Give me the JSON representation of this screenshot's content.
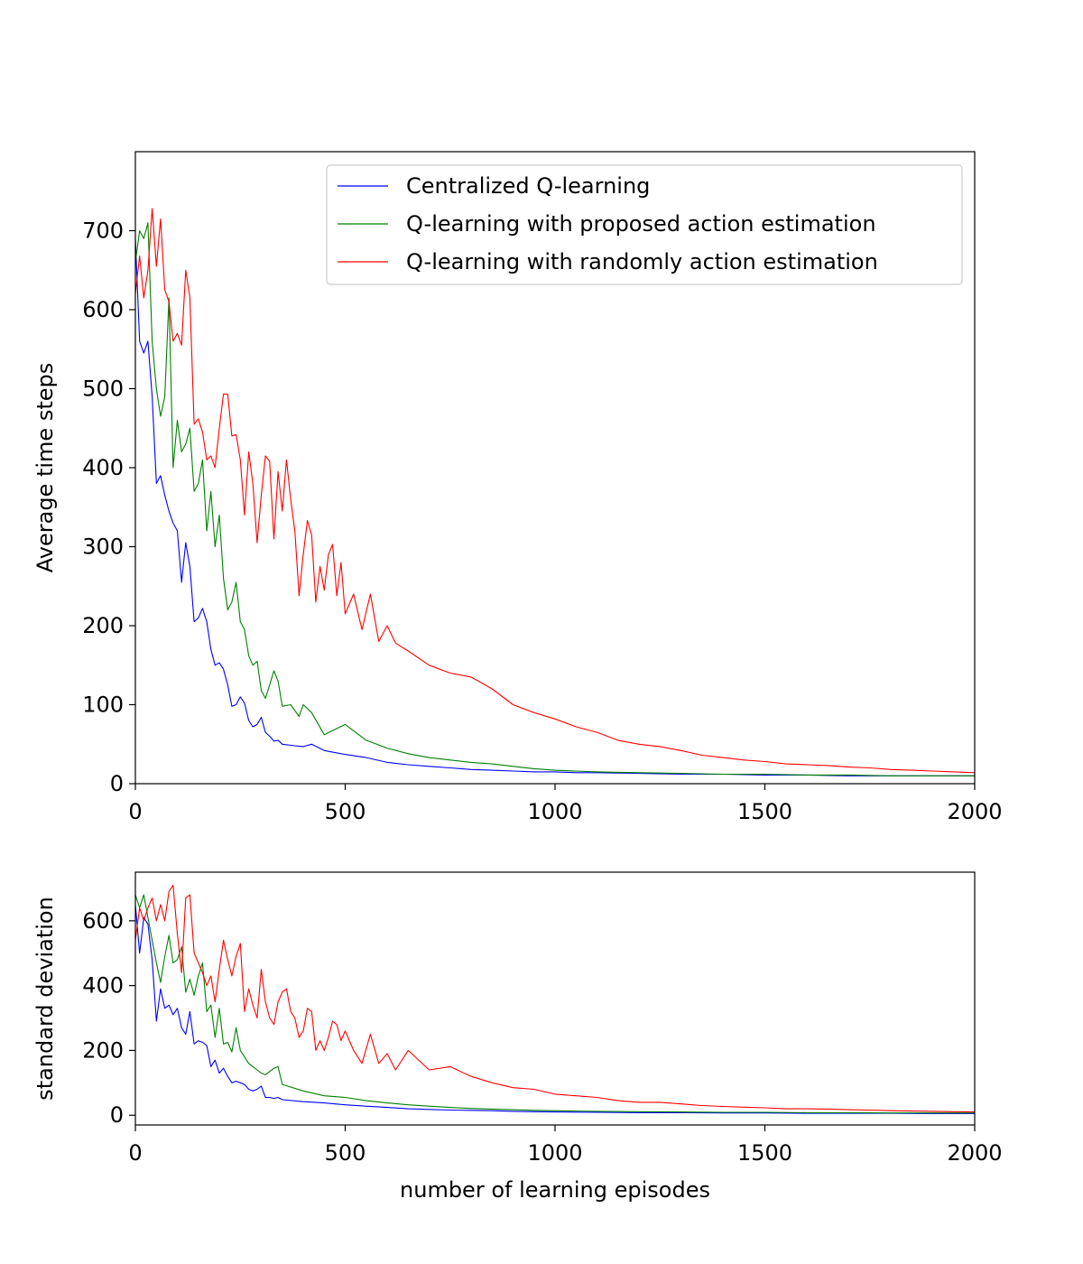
{
  "chart_data": [
    {
      "type": "line",
      "title": "",
      "xlabel": "",
      "ylabel": "Average time steps",
      "xlim": [
        0,
        2000
      ],
      "ylim": [
        0,
        800
      ],
      "xticks": [
        0,
        500,
        1000,
        1500,
        2000
      ],
      "yticks": [
        0,
        100,
        200,
        300,
        400,
        500,
        600,
        700
      ],
      "grid": false,
      "legend_position": "top-right",
      "series": [
        {
          "name": "Centralized Q-learning",
          "color": "#0000ff",
          "x": [
            0,
            10,
            20,
            30,
            40,
            50,
            60,
            70,
            80,
            90,
            100,
            110,
            120,
            130,
            140,
            150,
            160,
            170,
            180,
            190,
            200,
            210,
            220,
            230,
            240,
            250,
            260,
            270,
            280,
            290,
            300,
            310,
            320,
            330,
            340,
            350,
            380,
            400,
            420,
            450,
            500,
            550,
            600,
            650,
            700,
            750,
            800,
            850,
            900,
            950,
            1000,
            1050,
            1100,
            1200,
            1300,
            1400,
            1500,
            1600,
            1700,
            1800,
            1900,
            2000
          ],
          "values": [
            690,
            560,
            545,
            560,
            490,
            380,
            390,
            365,
            345,
            330,
            320,
            255,
            305,
            275,
            205,
            210,
            222,
            205,
            170,
            150,
            153,
            145,
            125,
            98,
            100,
            110,
            102,
            80,
            72,
            75,
            84,
            65,
            60,
            54,
            55,
            50,
            48,
            47,
            50,
            42,
            37,
            33,
            27,
            24,
            22,
            20,
            18,
            17,
            16,
            15,
            15,
            14,
            14,
            13,
            12,
            12,
            11,
            11,
            10,
            10,
            10,
            10
          ]
        },
        {
          "name": "Q-learning with proposed action estimation",
          "color": "#008000",
          "x": [
            0,
            10,
            20,
            30,
            40,
            50,
            60,
            70,
            80,
            90,
            100,
            110,
            120,
            130,
            140,
            150,
            160,
            170,
            180,
            190,
            200,
            210,
            220,
            230,
            240,
            250,
            260,
            270,
            280,
            290,
            300,
            310,
            320,
            330,
            340,
            350,
            370,
            390,
            400,
            420,
            450,
            500,
            550,
            600,
            650,
            700,
            750,
            800,
            850,
            900,
            950,
            1000,
            1050,
            1100,
            1200,
            1300,
            1400,
            1500,
            1600,
            1700,
            1800,
            1900,
            2000
          ],
          "values": [
            660,
            700,
            690,
            710,
            560,
            500,
            465,
            490,
            615,
            400,
            460,
            420,
            430,
            450,
            370,
            380,
            410,
            320,
            370,
            300,
            340,
            260,
            220,
            230,
            255,
            205,
            195,
            162,
            150,
            155,
            118,
            108,
            125,
            143,
            130,
            98,
            100,
            85,
            100,
            90,
            62,
            75,
            55,
            45,
            38,
            33,
            30,
            27,
            25,
            22,
            19,
            17,
            16,
            15,
            14,
            13,
            12,
            12,
            11,
            11,
            10,
            10,
            10
          ]
        },
        {
          "name": "Q-learning with randomly action estimation",
          "color": "#ff0000",
          "x": [
            0,
            10,
            20,
            30,
            40,
            50,
            60,
            70,
            80,
            90,
            100,
            110,
            120,
            130,
            140,
            150,
            160,
            170,
            180,
            190,
            200,
            210,
            220,
            230,
            240,
            250,
            260,
            270,
            280,
            290,
            300,
            310,
            320,
            330,
            340,
            350,
            360,
            370,
            380,
            390,
            400,
            410,
            420,
            430,
            440,
            450,
            460,
            470,
            480,
            490,
            500,
            520,
            540,
            560,
            580,
            600,
            620,
            650,
            700,
            750,
            800,
            850,
            900,
            950,
            1000,
            1050,
            1100,
            1150,
            1200,
            1250,
            1300,
            1350,
            1400,
            1450,
            1500,
            1550,
            1600,
            1650,
            1700,
            1750,
            1800,
            1850,
            1900,
            1950,
            2000
          ],
          "values": [
            620,
            668,
            615,
            650,
            728,
            655,
            715,
            625,
            610,
            560,
            570,
            555,
            650,
            615,
            455,
            462,
            445,
            410,
            415,
            400,
            450,
            493,
            493,
            440,
            442,
            410,
            340,
            420,
            380,
            305,
            365,
            415,
            408,
            310,
            395,
            345,
            410,
            360,
            320,
            238,
            290,
            333,
            315,
            230,
            275,
            245,
            290,
            303,
            238,
            280,
            215,
            240,
            195,
            240,
            180,
            200,
            178,
            168,
            150,
            140,
            135,
            120,
            100,
            90,
            82,
            72,
            65,
            55,
            50,
            47,
            42,
            36,
            33,
            30,
            28,
            25,
            24,
            23,
            21,
            20,
            18,
            17,
            16,
            15,
            14
          ]
        }
      ]
    },
    {
      "type": "line",
      "title": "",
      "xlabel": "number of learning episodes",
      "ylabel": "standard deviation",
      "xlim": [
        0,
        2000
      ],
      "ylim": [
        -30,
        750
      ],
      "xticks": [
        0,
        500,
        1000,
        1500,
        2000
      ],
      "yticks": [
        0,
        200,
        400,
        600
      ],
      "grid": false,
      "legend_position": "none",
      "series": [
        {
          "name": "Centralized Q-learning",
          "color": "#0000ff",
          "x": [
            0,
            10,
            20,
            30,
            40,
            50,
            60,
            70,
            80,
            90,
            100,
            110,
            120,
            130,
            140,
            150,
            160,
            170,
            180,
            190,
            200,
            210,
            220,
            230,
            240,
            250,
            260,
            270,
            280,
            290,
            300,
            310,
            320,
            330,
            340,
            350,
            400,
            450,
            500,
            550,
            600,
            650,
            700,
            750,
            800,
            850,
            900,
            950,
            1000,
            1100,
            1200,
            1300,
            1400,
            1500,
            1600,
            1700,
            1800,
            1900,
            2000
          ],
          "values": [
            650,
            500,
            610,
            590,
            480,
            290,
            390,
            330,
            340,
            310,
            330,
            270,
            250,
            320,
            220,
            230,
            225,
            215,
            150,
            170,
            130,
            145,
            120,
            100,
            105,
            100,
            95,
            80,
            75,
            80,
            90,
            55,
            55,
            52,
            55,
            48,
            42,
            38,
            32,
            28,
            24,
            20,
            18,
            16,
            15,
            14,
            12,
            11,
            10,
            9,
            8,
            8,
            7,
            7,
            6,
            6,
            6,
            5,
            5
          ]
        },
        {
          "name": "Q-learning with proposed action estimation",
          "color": "#008000",
          "x": [
            0,
            10,
            20,
            30,
            40,
            50,
            60,
            70,
            80,
            90,
            100,
            110,
            120,
            130,
            140,
            150,
            160,
            170,
            180,
            190,
            200,
            210,
            220,
            230,
            240,
            250,
            260,
            270,
            280,
            290,
            300,
            310,
            320,
            330,
            340,
            350,
            400,
            450,
            500,
            550,
            600,
            650,
            700,
            750,
            800,
            850,
            900,
            950,
            1000,
            1100,
            1200,
            1300,
            1400,
            1500,
            1600,
            1700,
            1800,
            1900,
            2000
          ],
          "values": [
            680,
            640,
            680,
            610,
            540,
            470,
            410,
            490,
            555,
            470,
            480,
            520,
            380,
            420,
            370,
            430,
            470,
            320,
            340,
            240,
            330,
            220,
            225,
            195,
            270,
            200,
            180,
            160,
            150,
            140,
            130,
            125,
            135,
            145,
            150,
            95,
            75,
            60,
            55,
            45,
            38,
            32,
            28,
            24,
            21,
            19,
            17,
            15,
            14,
            12,
            11,
            10,
            9,
            9,
            8,
            8,
            7,
            7,
            7
          ]
        },
        {
          "name": "Q-learning with randomly action estimation",
          "color": "#ff0000",
          "x": [
            0,
            10,
            20,
            30,
            40,
            50,
            60,
            70,
            80,
            90,
            100,
            110,
            120,
            130,
            140,
            150,
            160,
            170,
            180,
            190,
            200,
            210,
            220,
            230,
            240,
            250,
            260,
            270,
            280,
            290,
            300,
            310,
            320,
            330,
            340,
            350,
            360,
            370,
            380,
            390,
            400,
            410,
            420,
            430,
            440,
            450,
            460,
            470,
            480,
            490,
            500,
            520,
            540,
            560,
            580,
            600,
            620,
            650,
            700,
            750,
            800,
            850,
            900,
            950,
            1000,
            1050,
            1100,
            1150,
            1200,
            1250,
            1300,
            1350,
            1400,
            1450,
            1500,
            1550,
            1600,
            1650,
            1700,
            1750,
            1800,
            1850,
            1900,
            1950,
            2000
          ],
          "values": [
            540,
            640,
            600,
            640,
            670,
            600,
            650,
            600,
            690,
            710,
            560,
            440,
            670,
            680,
            500,
            470,
            440,
            400,
            430,
            350,
            450,
            540,
            480,
            430,
            490,
            530,
            320,
            390,
            340,
            300,
            450,
            350,
            300,
            280,
            350,
            380,
            390,
            320,
            300,
            240,
            260,
            330,
            320,
            200,
            230,
            200,
            240,
            290,
            280,
            230,
            260,
            200,
            160,
            250,
            160,
            190,
            140,
            200,
            140,
            150,
            120,
            100,
            85,
            80,
            65,
            60,
            55,
            45,
            40,
            40,
            35,
            30,
            27,
            25,
            23,
            20,
            20,
            19,
            17,
            16,
            14,
            13,
            12,
            11,
            10
          ]
        }
      ]
    }
  ]
}
